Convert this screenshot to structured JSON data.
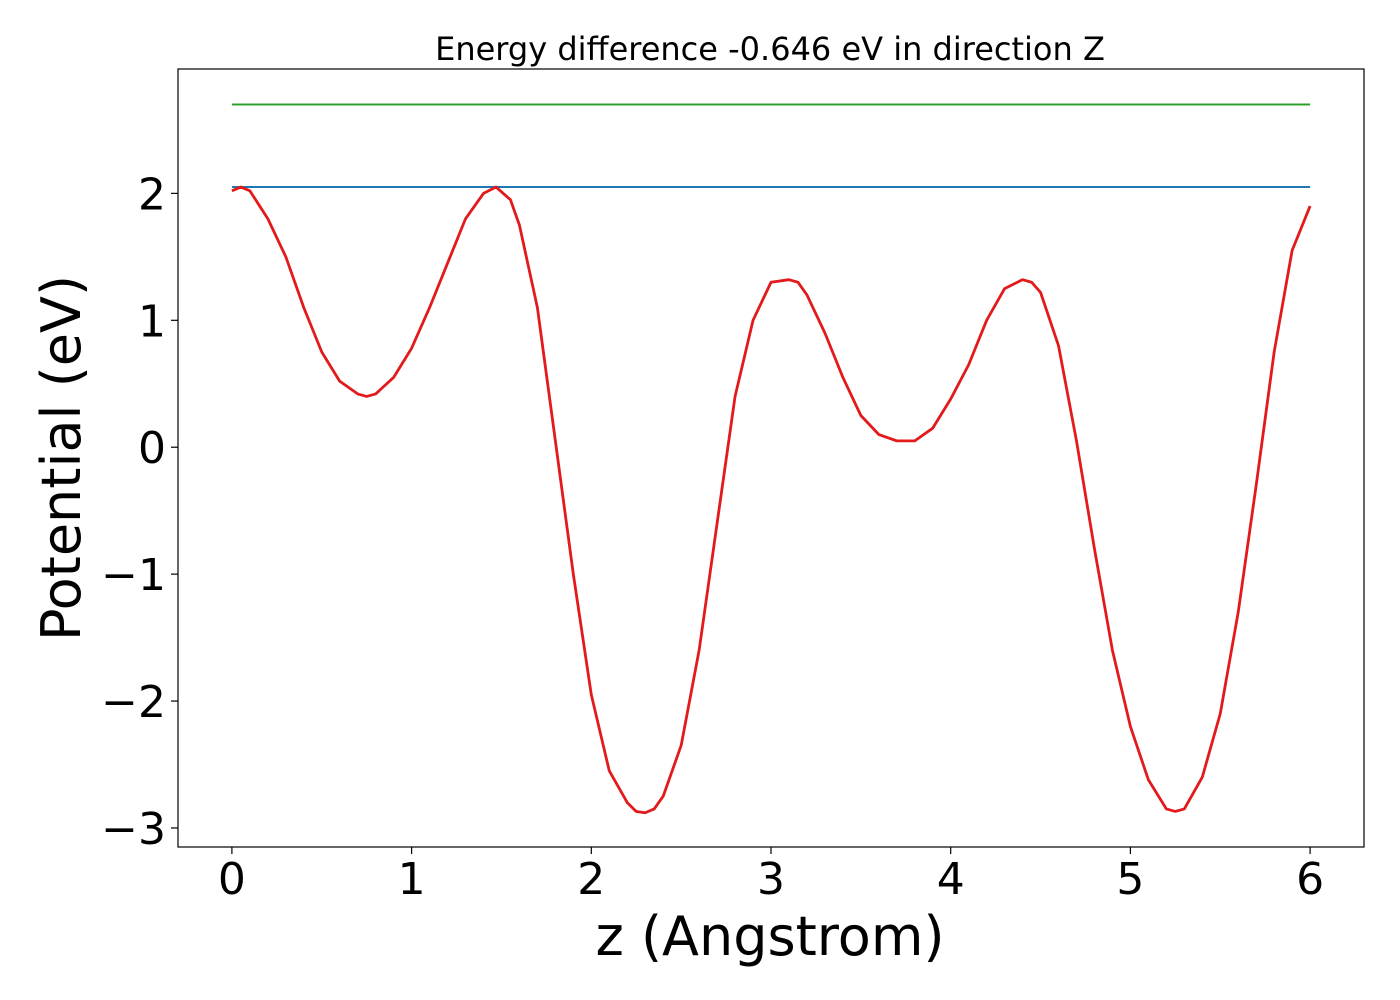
{
  "chart_data": {
    "type": "line",
    "title": "Energy difference -0.646 eV in direction Z",
    "xlabel": "z (Angstrom)",
    "ylabel": "Potential (eV)",
    "xlim": [
      -0.3,
      6.3
    ],
    "ylim": [
      -3.15,
      2.98
    ],
    "x_ticks": [
      0,
      1,
      2,
      3,
      4,
      5,
      6
    ],
    "x_tick_labels": [
      "0",
      "1",
      "2",
      "3",
      "4",
      "5",
      "6"
    ],
    "y_ticks": [
      -3,
      -2,
      -1,
      0,
      1,
      2
    ],
    "y_tick_labels": [
      "−3",
      "−2",
      "−1",
      "0",
      "1",
      "2"
    ],
    "grid": false,
    "series": [
      {
        "color": "#2ca02c",
        "x": [
          0,
          6
        ],
        "y": [
          2.7,
          2.7
        ]
      },
      {
        "color": "#1f77b4",
        "x": [
          0,
          6
        ],
        "y": [
          2.05,
          2.05
        ]
      },
      {
        "color": "#e31a1c",
        "x": [
          0,
          0.05,
          0.1,
          0.2,
          0.3,
          0.4,
          0.5,
          0.6,
          0.7,
          0.75,
          0.8,
          0.9,
          1.0,
          1.1,
          1.2,
          1.3,
          1.4,
          1.47,
          1.55,
          1.6,
          1.7,
          1.8,
          1.9,
          2.0,
          2.1,
          2.2,
          2.25,
          2.3,
          2.35,
          2.4,
          2.5,
          2.6,
          2.7,
          2.8,
          2.9,
          3.0,
          3.1,
          3.15,
          3.2,
          3.3,
          3.4,
          3.5,
          3.6,
          3.7,
          3.8,
          3.9,
          4.0,
          4.1,
          4.2,
          4.3,
          4.4,
          4.45,
          4.5,
          4.6,
          4.7,
          4.8,
          4.9,
          5.0,
          5.1,
          5.2,
          5.25,
          5.3,
          5.4,
          5.5,
          5.6,
          5.7,
          5.8,
          5.9,
          6.0
        ],
        "y": [
          2.02,
          2.05,
          2.02,
          1.8,
          1.5,
          1.1,
          0.75,
          0.52,
          0.42,
          0.4,
          0.42,
          0.55,
          0.78,
          1.1,
          1.45,
          1.8,
          2.0,
          2.05,
          1.95,
          1.75,
          1.1,
          0.05,
          -1.0,
          -1.95,
          -2.55,
          -2.8,
          -2.87,
          -2.88,
          -2.85,
          -2.75,
          -2.35,
          -1.6,
          -0.6,
          0.4,
          1.0,
          1.3,
          1.32,
          1.3,
          1.2,
          0.9,
          0.55,
          0.25,
          0.1,
          0.05,
          0.05,
          0.15,
          0.38,
          0.65,
          1.0,
          1.25,
          1.32,
          1.3,
          1.22,
          0.8,
          0.05,
          -0.8,
          -1.6,
          -2.2,
          -2.62,
          -2.85,
          -2.87,
          -2.85,
          -2.6,
          -2.1,
          -1.3,
          -0.3,
          0.75,
          1.55,
          1.9
        ]
      }
    ]
  }
}
